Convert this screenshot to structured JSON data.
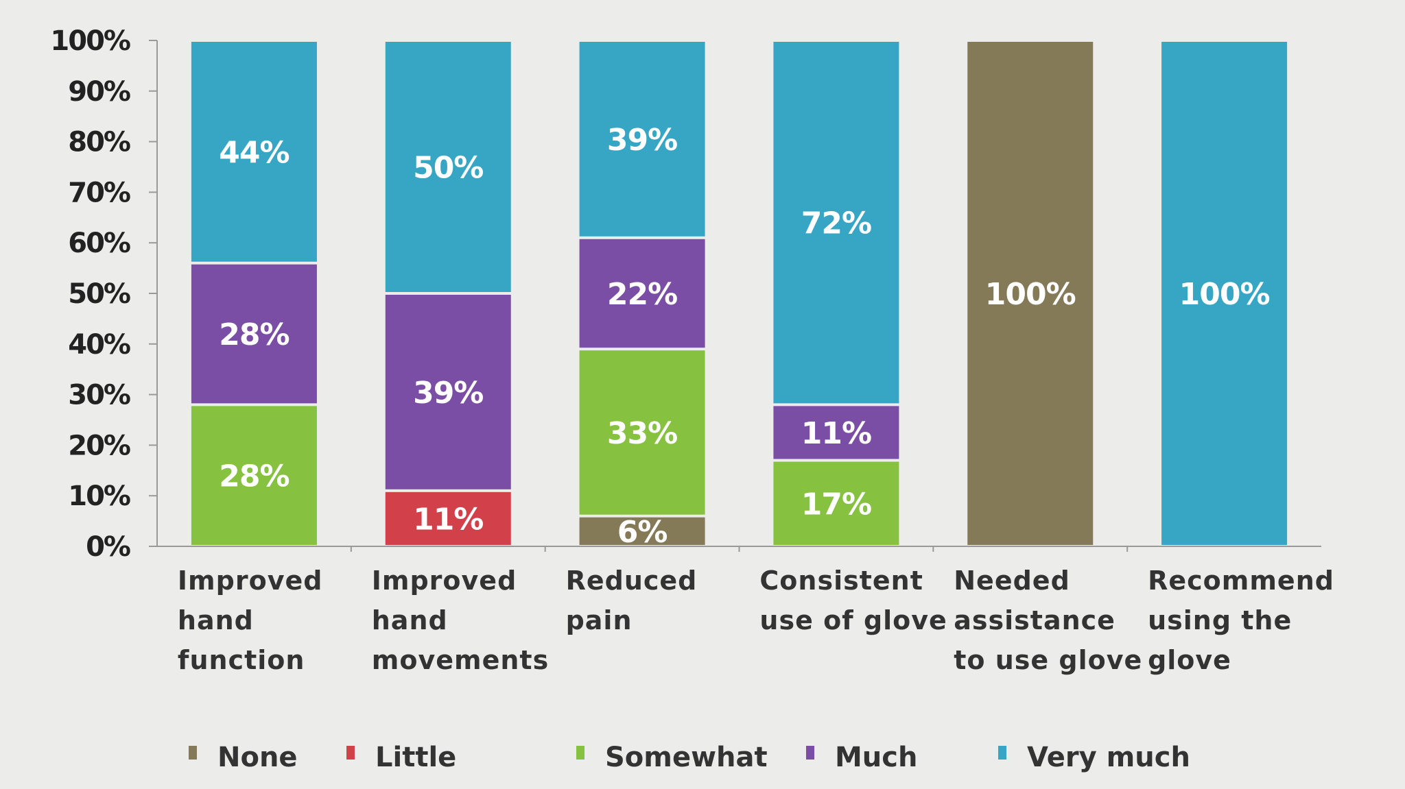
{
  "chart_data": {
    "type": "bar",
    "stacked": true,
    "title": "",
    "xlabel": "",
    "ylabel": "",
    "ylim": [
      0,
      100
    ],
    "y_ticks": [
      "0%",
      "10%",
      "20%",
      "30%",
      "40%",
      "50%",
      "60%",
      "70%",
      "80%",
      "90%",
      "100%"
    ],
    "grid": false,
    "legend_position": "bottom",
    "categories": [
      [
        "Improved",
        "hand",
        "function"
      ],
      [
        "Improved",
        "hand",
        "movements"
      ],
      [
        "Reduced",
        "pain"
      ],
      [
        "Consistent",
        "use of glove"
      ],
      [
        "Needed",
        "assistance",
        "to use glove"
      ],
      [
        "Recommend",
        "using the",
        "glove"
      ]
    ],
    "series": [
      {
        "name": "None",
        "color": "#857a58",
        "values": [
          0,
          0,
          6,
          0,
          100,
          0
        ]
      },
      {
        "name": "Little",
        "color": "#d2404a",
        "values": [
          0,
          11,
          0,
          0,
          0,
          0
        ]
      },
      {
        "name": "Somewhat",
        "color": "#86c140",
        "values": [
          28,
          0,
          33,
          17,
          0,
          0
        ]
      },
      {
        "name": "Much",
        "color": "#7b4ea5",
        "values": [
          28,
          39,
          22,
          11,
          0,
          0
        ]
      },
      {
        "name": "Very much",
        "color": "#37a5c4",
        "values": [
          44,
          50,
          39,
          72,
          0,
          100
        ]
      }
    ]
  }
}
